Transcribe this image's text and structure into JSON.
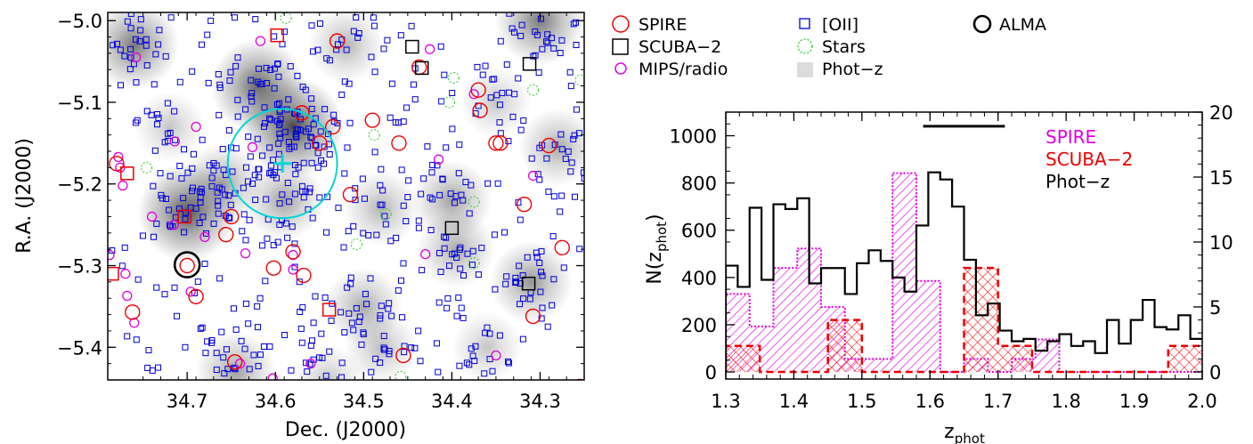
{
  "chart_data": [
    {
      "type": "scatter",
      "xlabel": "Dec. (J2000)",
      "ylabel": "R.A. (J2000)",
      "xlim": [
        34.79,
        34.25
      ],
      "ylim": [
        -5.44,
        -4.99
      ],
      "xticks": [
        34.7,
        34.6,
        34.5,
        34.4,
        34.3
      ],
      "xtick_labels": [
        "34.7",
        "34.6",
        "34.5",
        "34.4",
        "34.3"
      ],
      "yticks": [
        -5.0,
        -5.1,
        -5.2,
        -5.3,
        -5.4
      ],
      "ytick_labels": [
        "−5.0",
        "−5.1",
        "−5.2",
        "−5.3",
        "−5.4"
      ],
      "legend": {
        "placement": "outside-right-top",
        "entries": [
          {
            "label": "SPIRE",
            "marker": "circle",
            "color": "#ee0000"
          },
          {
            "label": "SCUBA−2",
            "marker": "square",
            "color": "#000000"
          },
          {
            "label": "MIPS/radio",
            "marker": "small-circle",
            "color": "#e000e0"
          },
          {
            "label": "[OII]",
            "marker": "small-square",
            "color": "#0000dd"
          },
          {
            "label": "Stars",
            "marker": "dotted-circle",
            "color": "#22cc22"
          },
          {
            "label": "Phot−z",
            "marker": "gray-fill",
            "color": "#dddddd"
          },
          {
            "label": "ALMA",
            "marker": "thick-circle",
            "color": "#000000"
          }
        ]
      },
      "photz_blobs": [
        {
          "x": 34.76,
          "y": -5.03,
          "strength": 0.7
        },
        {
          "x": 34.58,
          "y": -5.13,
          "strength": 0.95
        },
        {
          "x": 34.62,
          "y": -5.08,
          "strength": 0.8
        },
        {
          "x": 34.7,
          "y": -5.235,
          "strength": 0.9
        },
        {
          "x": 34.66,
          "y": -5.2,
          "strength": 0.5
        },
        {
          "x": 34.59,
          "y": -5.22,
          "strength": 0.5
        },
        {
          "x": 34.52,
          "y": -5.03,
          "strength": 0.4
        },
        {
          "x": 34.48,
          "y": -5.23,
          "strength": 0.4
        },
        {
          "x": 34.4,
          "y": -5.22,
          "strength": 0.5
        },
        {
          "x": 34.395,
          "y": -5.28,
          "strength": 0.45
        },
        {
          "x": 34.3,
          "y": -5.0,
          "strength": 0.7
        },
        {
          "x": 34.31,
          "y": -5.32,
          "strength": 0.55
        },
        {
          "x": 34.28,
          "y": -5.155,
          "strength": 0.45
        },
        {
          "x": 34.5,
          "y": -5.35,
          "strength": 0.45
        },
        {
          "x": 34.48,
          "y": -5.4,
          "strength": 0.35
        },
        {
          "x": 34.645,
          "y": -5.43,
          "strength": 0.5
        },
        {
          "x": 34.54,
          "y": -5.44,
          "strength": 0.3
        },
        {
          "x": 34.36,
          "y": -5.4,
          "strength": 0.3
        },
        {
          "x": 34.35,
          "y": -5.1,
          "strength": 0.3
        },
        {
          "x": 34.72,
          "y": -5.13,
          "strength": 0.3
        }
      ],
      "spire": [
        [
          34.53,
          -5.025
        ],
        [
          34.437,
          -5.057
        ],
        [
          34.57,
          -5.113
        ],
        [
          34.535,
          -5.13
        ],
        [
          34.49,
          -5.122
        ],
        [
          34.55,
          -5.15
        ],
        [
          34.46,
          -5.15
        ],
        [
          34.37,
          -5.085
        ],
        [
          34.368,
          -5.11
        ],
        [
          34.35,
          -5.15
        ],
        [
          34.345,
          -5.15
        ],
        [
          34.29,
          -5.153
        ],
        [
          34.78,
          -5.175
        ],
        [
          34.515,
          -5.213
        ],
        [
          34.318,
          -5.225
        ],
        [
          34.656,
          -5.262
        ],
        [
          34.65,
          -5.24
        ],
        [
          34.602,
          -5.303
        ],
        [
          34.568,
          -5.312
        ],
        [
          34.7,
          -5.3
        ],
        [
          34.69,
          -5.338
        ],
        [
          34.762,
          -5.357
        ],
        [
          34.308,
          -5.362
        ],
        [
          34.455,
          -5.41
        ],
        [
          34.646,
          -5.418
        ],
        [
          34.255,
          -5.448
        ],
        [
          34.275,
          -5.278
        ],
        [
          34.58,
          -5.283
        ]
      ],
      "scuba2": [
        [
          34.598,
          -5.018
        ],
        [
          34.445,
          -5.032
        ],
        [
          34.434,
          -5.058
        ],
        [
          34.312,
          -5.053
        ],
        [
          34.768,
          -5.187
        ],
        [
          34.703,
          -5.24
        ],
        [
          34.4,
          -5.254
        ],
        [
          34.785,
          -5.31
        ],
        [
          34.313,
          -5.322
        ],
        [
          34.539,
          -5.354
        ]
      ],
      "scuba2_red": [
        [
          34.598,
          -5.018
        ],
        [
          34.768,
          -5.187
        ],
        [
          34.703,
          -5.24
        ],
        [
          34.785,
          -5.31
        ],
        [
          34.539,
          -5.354
        ]
      ],
      "mips_radio": [
        [
          34.758,
          -5.045
        ],
        [
          34.617,
          -5.025
        ],
        [
          34.425,
          -5.035
        ],
        [
          34.375,
          -5.09
        ],
        [
          34.626,
          -5.155
        ],
        [
          34.714,
          -5.148
        ],
        [
          34.776,
          -5.18
        ],
        [
          34.778,
          -5.167
        ],
        [
          34.308,
          -5.19
        ],
        [
          34.74,
          -5.24
        ],
        [
          34.715,
          -5.25
        ],
        [
          34.68,
          -5.265
        ],
        [
          34.634,
          -5.285
        ],
        [
          34.58,
          -5.287
        ],
        [
          34.77,
          -5.31
        ],
        [
          34.696,
          -5.332
        ],
        [
          34.768,
          -5.337
        ],
        [
          34.76,
          -5.37
        ],
        [
          34.58,
          -5.305
        ],
        [
          34.35,
          -5.41
        ],
        [
          34.43,
          -5.286
        ],
        [
          34.415,
          -5.17
        ],
        [
          34.64,
          -5.42
        ],
        [
          34.56,
          -5.42
        ],
        [
          34.603,
          -5.438
        ],
        [
          34.788,
          -5.287
        ],
        [
          34.773,
          -5.202
        ],
        [
          34.69,
          -5.13
        ]
      ],
      "stars": [
        [
          34.588,
          -4.997
        ],
        [
          34.398,
          -5.07
        ],
        [
          34.308,
          -5.085
        ],
        [
          34.403,
          -5.1
        ],
        [
          34.488,
          -5.14
        ],
        [
          34.746,
          -5.18
        ],
        [
          34.375,
          -5.222
        ],
        [
          34.475,
          -5.237
        ],
        [
          34.508,
          -5.274
        ],
        [
          34.375,
          -5.297
        ],
        [
          34.458,
          -5.436
        ],
        [
          34.254,
          -5.073
        ]
      ],
      "alma": [
        [
          34.7,
          -5.299
        ]
      ],
      "highlight_circle": {
        "center": [
          34.592,
          -5.175
        ],
        "radius_deg": 0.062,
        "color": "#00d6d6"
      },
      "highlight_cross": {
        "center": [
          34.592,
          -5.175
        ],
        "color": "#00d6d6"
      }
    },
    {
      "type": "histogram",
      "xlabel": "z",
      "xlabel_sub": "phot",
      "ylabel": "N(z",
      "ylabel_sub": "phot",
      "ylabel_end": ")",
      "xlim": [
        1.3,
        2.0
      ],
      "ylim_left": [
        -30,
        1100
      ],
      "ylim_right": [
        -0.55,
        20.0
      ],
      "xticks": [
        "1.3",
        "1.4",
        "1.5",
        "1.6",
        "1.7",
        "1.8",
        "1.9",
        "2.0"
      ],
      "yticks_left": [
        "0",
        "200",
        "400",
        "600",
        "800",
        "1000"
      ],
      "yticks_right": [
        "0",
        "5",
        "10",
        "15",
        "20"
      ],
      "legend": {
        "placement": "top-right",
        "entries": [
          {
            "label": "SPIRE",
            "color": "#e000e0"
          },
          {
            "label": "SCUBA−2",
            "color": "#ee0000"
          },
          {
            "label": "Phot−z",
            "color": "#000000"
          }
        ]
      },
      "bar_range": [
        1.59,
        1.71
      ],
      "bar_level": 1040,
      "series": [
        {
          "name": "Phot−z",
          "axis": "left",
          "bin_width": 0.0175,
          "bin_start": 1.3,
          "values": [
            450,
            360,
            695,
            390,
            710,
            690,
            735,
            375,
            440,
            440,
            330,
            460,
            515,
            470,
            400,
            340,
            620,
            845,
            815,
            700,
            475,
            240,
            290,
            175,
            130,
            140,
            90,
            130,
            160,
            110,
            130,
            80,
            220,
            120,
            220,
            305,
            190,
            180,
            240,
            140
          ]
        },
        {
          "name": "SPIRE",
          "axis": "right",
          "bin_width": 0.035,
          "bin_start": 1.3,
          "values": [
            6,
            3.5,
            8,
            9.5,
            5,
            1,
            1,
            15.3,
            7,
            0,
            1,
            0,
            1,
            2.5,
            0,
            0,
            0,
            0,
            0,
            0
          ]
        },
        {
          "name": "SCUBA−2",
          "axis": "right",
          "bin_width": 0.05,
          "bin_start": 1.3,
          "values": [
            2,
            0,
            0,
            4,
            0,
            0,
            0,
            8,
            2,
            0,
            0,
            0,
            0,
            2
          ]
        }
      ]
    }
  ]
}
